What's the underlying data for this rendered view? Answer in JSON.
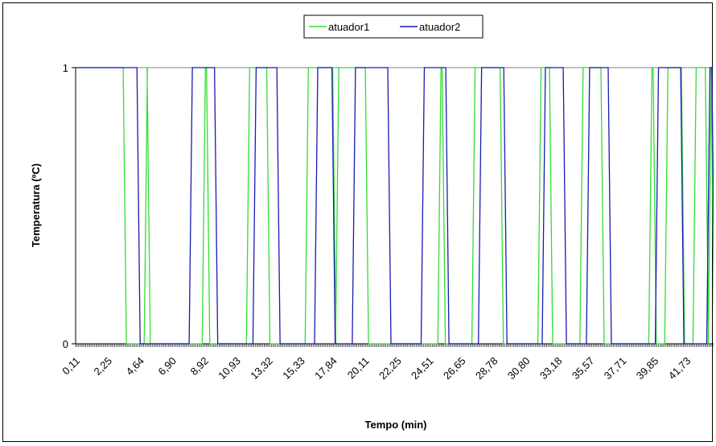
{
  "chart_data": {
    "type": "line",
    "title": "",
    "xlabel": "Tempo (min)",
    "ylabel": "Temperatura (ºC)",
    "ylim": [
      0,
      1
    ],
    "yticks": [
      "0",
      "1"
    ],
    "x_tick_labels": [
      "0,11",
      "2,25",
      "4,64",
      "6,90",
      "8,92",
      "10,93",
      "13,32",
      "15,33",
      "17,84",
      "20,11",
      "22,25",
      "24,51",
      "26,65",
      "28,78",
      "30,80",
      "33,18",
      "35,57",
      "37,71",
      "39,85",
      "41,73"
    ],
    "grid": false,
    "legend_position": "top-center",
    "x_step": 0.1,
    "x_start": 0.11,
    "series": [
      {
        "name": "atuador1",
        "color": "#33dd33",
        "transitions": [
          [
            0.11,
            1
          ],
          [
            3.5,
            0
          ],
          [
            4.95,
            1
          ],
          [
            5.15,
            0
          ],
          [
            8.95,
            1
          ],
          [
            9.25,
            0
          ],
          [
            12.0,
            1
          ],
          [
            13.4,
            0
          ],
          [
            16.05,
            1
          ],
          [
            17.95,
            0
          ],
          [
            18.15,
            1
          ],
          [
            20.2,
            0
          ],
          [
            25.2,
            1
          ],
          [
            25.5,
            0
          ],
          [
            27.55,
            1
          ],
          [
            29.5,
            0
          ],
          [
            32.1,
            1
          ],
          [
            32.9,
            0
          ],
          [
            35.0,
            1
          ],
          [
            36.45,
            0
          ],
          [
            39.75,
            1
          ],
          [
            40.05,
            0
          ],
          [
            40.85,
            1
          ],
          [
            42.0,
            0
          ],
          [
            42.8,
            1
          ],
          [
            43.65,
            0
          ],
          [
            43.85,
            1
          ],
          [
            44.05,
            0
          ]
        ]
      },
      {
        "name": "atuador2",
        "color": "#1a1ab3",
        "transitions": [
          [
            0.11,
            1
          ],
          [
            4.45,
            0
          ],
          [
            8.05,
            1
          ],
          [
            9.8,
            0
          ],
          [
            12.45,
            1
          ],
          [
            14.1,
            0
          ],
          [
            16.7,
            1
          ],
          [
            17.9,
            0
          ],
          [
            19.3,
            1
          ],
          [
            21.75,
            0
          ],
          [
            24.05,
            1
          ],
          [
            25.75,
            0
          ],
          [
            28.0,
            1
          ],
          [
            29.75,
            0
          ],
          [
            32.4,
            1
          ],
          [
            33.85,
            0
          ],
          [
            35.45,
            1
          ],
          [
            36.95,
            0
          ],
          [
            40.2,
            1
          ],
          [
            41.95,
            0
          ],
          [
            43.75,
            1
          ],
          [
            44.1,
            0
          ]
        ]
      }
    ]
  }
}
